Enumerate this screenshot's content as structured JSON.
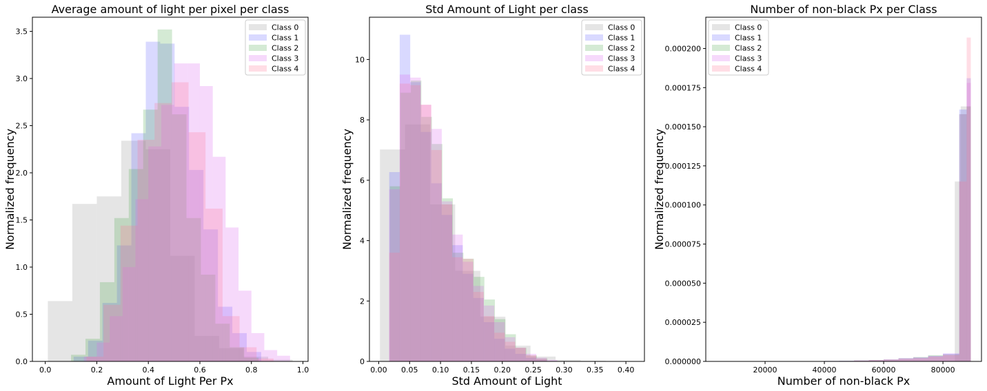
{
  "chart_data": [
    {
      "type": "histogram",
      "title": "Average amount of light per pixel per class",
      "xlabel": "Amount of Light Per Px",
      "ylabel": "Normalized frequency",
      "xlim": [
        -0.05,
        1.02
      ],
      "ylim": [
        0,
        3.65
      ],
      "xticks": [
        0.0,
        0.2,
        0.4,
        0.6,
        0.8,
        1.0
      ],
      "xtick_labels": [
        "0.0",
        "0.2",
        "0.4",
        "0.6",
        "0.8",
        "1.0"
      ],
      "yticks": [
        0.0,
        0.5,
        1.0,
        1.5,
        2.0,
        2.5,
        3.0,
        3.5
      ],
      "ytick_labels": [
        "0.0",
        "0.5",
        "1.0",
        "1.5",
        "2.0",
        "2.5",
        "3.0",
        "3.5"
      ],
      "legend": {
        "position": "top-right",
        "entries": [
          "Class 0",
          "Class 1",
          "Class 2",
          "Class 3",
          "Class 4"
        ]
      },
      "series": [
        {
          "name": "Class 0",
          "bin_edges": [
            0.01,
            0.105,
            0.2,
            0.295,
            0.39,
            0.485,
            0.58,
            0.675,
            0.77,
            0.865,
            0.96
          ],
          "values": [
            0.64,
            1.67,
            1.75,
            2.34,
            2.25,
            1.12,
            0.27,
            0.14,
            0.05,
            0.02
          ]
        },
        {
          "name": "Class 1",
          "bin_edges": [
            0.11,
            0.166,
            0.222,
            0.278,
            0.334,
            0.39,
            0.446,
            0.502,
            0.558,
            0.614,
            0.67,
            0.726,
            0.782,
            0.838
          ],
          "values": [
            0.05,
            0.22,
            0.62,
            1.23,
            2.42,
            3.39,
            3.37,
            2.7,
            2.03,
            1.4,
            0.58,
            0.3,
            0.1
          ]
        },
        {
          "name": "Class 2",
          "bin_edges": [
            0.1,
            0.156,
            0.212,
            0.268,
            0.324,
            0.38,
            0.436,
            0.492,
            0.548,
            0.604,
            0.66,
            0.716,
            0.772,
            0.828
          ],
          "values": [
            0.07,
            0.24,
            0.84,
            1.52,
            2.04,
            2.67,
            3.52,
            2.62,
            1.52,
            0.92,
            0.4,
            0.15,
            0.04
          ]
        },
        {
          "name": "Class 3",
          "bin_edges": [
            0.15,
            0.2,
            0.25,
            0.3,
            0.35,
            0.4,
            0.45,
            0.5,
            0.55,
            0.6,
            0.65,
            0.7,
            0.75,
            0.8,
            0.85,
            0.9,
            0.95
          ],
          "values": [
            0.05,
            0.2,
            0.48,
            1.0,
            1.72,
            2.28,
            2.72,
            3.16,
            3.16,
            2.92,
            2.17,
            1.42,
            0.75,
            0.3,
            0.12,
            0.06
          ]
        },
        {
          "name": "Class 4",
          "bin_edges": [
            0.16,
            0.226,
            0.292,
            0.358,
            0.424,
            0.49,
            0.556,
            0.622,
            0.688,
            0.754,
            0.82,
            0.886
          ],
          "values": [
            0.05,
            0.6,
            1.44,
            2.35,
            2.74,
            2.96,
            2.43,
            1.62,
            0.48,
            0.15,
            0.03
          ]
        }
      ]
    },
    {
      "type": "histogram",
      "title": "Std Amount of Light per class",
      "xlabel": "Std Amount of Light",
      "ylabel": "Normalized frequency",
      "xlim": [
        -0.015,
        0.43
      ],
      "ylim": [
        0,
        11.4
      ],
      "xticks": [
        0.0,
        0.05,
        0.1,
        0.15,
        0.2,
        0.25,
        0.3,
        0.35,
        0.4
      ],
      "xtick_labels": [
        "0.00",
        "0.05",
        "0.10",
        "0.15",
        "0.20",
        "0.25",
        "0.30",
        "0.35",
        "0.40"
      ],
      "yticks": [
        0,
        2,
        4,
        6,
        8,
        10
      ],
      "ytick_labels": [
        "0",
        "2",
        "4",
        "6",
        "8",
        "10"
      ],
      "legend": {
        "position": "top-right",
        "entries": [
          "Class 0",
          "Class 1",
          "Class 2",
          "Class 3",
          "Class 4"
        ]
      },
      "series": [
        {
          "name": "Class 0",
          "bin_edges": [
            0.002,
            0.0426,
            0.0832,
            0.1238,
            0.1644,
            0.205,
            0.2456,
            0.2862,
            0.3268,
            0.3674,
            0.408
          ],
          "values": [
            7.02,
            7.85,
            5.2,
            3.0,
            1.48,
            0.52,
            0.16,
            0.05,
            0.02,
            0.01
          ]
        },
        {
          "name": "Class 1",
          "bin_edges": [
            0.017,
            0.034,
            0.051,
            0.068,
            0.085,
            0.102,
            0.119,
            0.136,
            0.153,
            0.17,
            0.187,
            0.204,
            0.221,
            0.238,
            0.255,
            0.272
          ],
          "values": [
            6.27,
            10.82,
            9.25,
            7.6,
            5.9,
            4.85,
            3.85,
            2.9,
            2.1,
            1.3,
            0.75,
            0.42,
            0.25,
            0.12,
            0.06
          ]
        },
        {
          "name": "Class 2",
          "bin_edges": [
            0.018,
            0.035,
            0.052,
            0.069,
            0.086,
            0.103,
            0.12,
            0.137,
            0.154,
            0.171,
            0.188,
            0.205,
            0.222,
            0.239,
            0.256,
            0.273
          ],
          "values": [
            5.8,
            8.9,
            9.3,
            8.1,
            7.2,
            5.4,
            3.6,
            3.4,
            2.8,
            2.05,
            1.4,
            0.9,
            0.45,
            0.2,
            0.1
          ]
        },
        {
          "name": "Class 3",
          "bin_edges": [
            0.017,
            0.034,
            0.051,
            0.068,
            0.085,
            0.102,
            0.119,
            0.136,
            0.153,
            0.17,
            0.187,
            0.204,
            0.221,
            0.238,
            0.255,
            0.272,
            0.289
          ],
          "values": [
            5.7,
            9.5,
            9.4,
            8.5,
            7.7,
            5.3,
            4.2,
            3.3,
            2.5,
            1.85,
            1.3,
            0.8,
            0.45,
            0.25,
            0.12,
            0.05
          ]
        },
        {
          "name": "Class 4",
          "bin_edges": [
            0.017,
            0.034,
            0.051,
            0.068,
            0.085,
            0.102,
            0.119,
            0.136,
            0.153,
            0.17,
            0.187,
            0.204,
            0.221,
            0.238,
            0.255,
            0.272
          ],
          "values": [
            3.6,
            9.2,
            9.15,
            8.5,
            7.0,
            5.2,
            3.45,
            3.4,
            2.3,
            1.5,
            0.95,
            0.65,
            0.45,
            0.2,
            0.08
          ]
        }
      ]
    },
    {
      "type": "histogram",
      "title": "Number of non-black Px per Class",
      "xlabel": "Number of non-black Px",
      "ylabel": "Normalized frequency",
      "xlim": [
        0,
        93000
      ],
      "ylim": [
        0,
        0.00022
      ],
      "xticks": [
        20000,
        40000,
        60000,
        80000
      ],
      "xtick_labels": [
        "20000",
        "40000",
        "60000",
        "80000"
      ],
      "yticks": [
        0,
        2.5e-05,
        5e-05,
        7.5e-05,
        0.0001,
        0.000125,
        0.00015,
        0.000175,
        0.0002
      ],
      "ytick_labels": [
        "0.000000",
        "0.000025",
        "0.000050",
        "0.000075",
        "0.000100",
        "0.000125",
        "0.000150",
        "0.000175",
        "0.000200"
      ],
      "legend": {
        "position": "top-left",
        "entries": [
          "Class 0",
          "Class 1",
          "Class 2",
          "Class 3",
          "Class 4"
        ]
      },
      "series": [
        {
          "name": "Class 0",
          "bin_edges": [
            84000,
            86000,
            89400
          ],
          "values": [
            0.000115,
            0.000163
          ]
        },
        {
          "name": "Class 1",
          "bin_edges": [
            40000,
            45000,
            50000,
            55000,
            60000,
            65000,
            70000,
            75000,
            80000,
            85500,
            88000,
            89400
          ],
          "values": [
            3e-07,
            4e-07,
            6e-07,
            8e-07,
            1.2e-06,
            2e-06,
            2.5e-06,
            3.5e-06,
            5e-06,
            0.000161,
            0.000181
          ]
        },
        {
          "name": "Class 2",
          "bin_edges": [
            40000,
            45000,
            50000,
            55000,
            60000,
            65000,
            70000,
            75000,
            80000,
            85500,
            88000,
            89400
          ],
          "values": [
            3e-07,
            4e-07,
            6e-07,
            9e-07,
            1.3e-06,
            2e-06,
            2.8e-06,
            4e-06,
            4.5e-06,
            0.000158,
            0.000163
          ]
        },
        {
          "name": "Class 3",
          "bin_edges": [
            40000,
            45000,
            50000,
            55000,
            60000,
            65000,
            70000,
            75000,
            80000,
            85500,
            88000,
            89400
          ],
          "values": [
            3e-07,
            4e-07,
            6e-07,
            9e-07,
            1.3e-06,
            2e-06,
            2.5e-06,
            3.5e-06,
            5e-06,
            0.000158,
            0.000178
          ]
        },
        {
          "name": "Class 4",
          "bin_edges": [
            50000,
            55000,
            60000,
            65000,
            70000,
            75000,
            80000,
            85500,
            88000,
            89400
          ],
          "values": [
            5e-07,
            8e-07,
            1.1e-06,
            1.6e-06,
            2e-06,
            3e-06,
            4e-06,
            0.000115,
            0.000207
          ]
        }
      ]
    }
  ],
  "style": {
    "class_colors": [
      "#999999",
      "#6666ff",
      "#55aa55",
      "#dd66ee",
      "#ff7799"
    ],
    "bar_opacity": 0.25,
    "axes_color": "#000000",
    "background": "#ffffff"
  }
}
